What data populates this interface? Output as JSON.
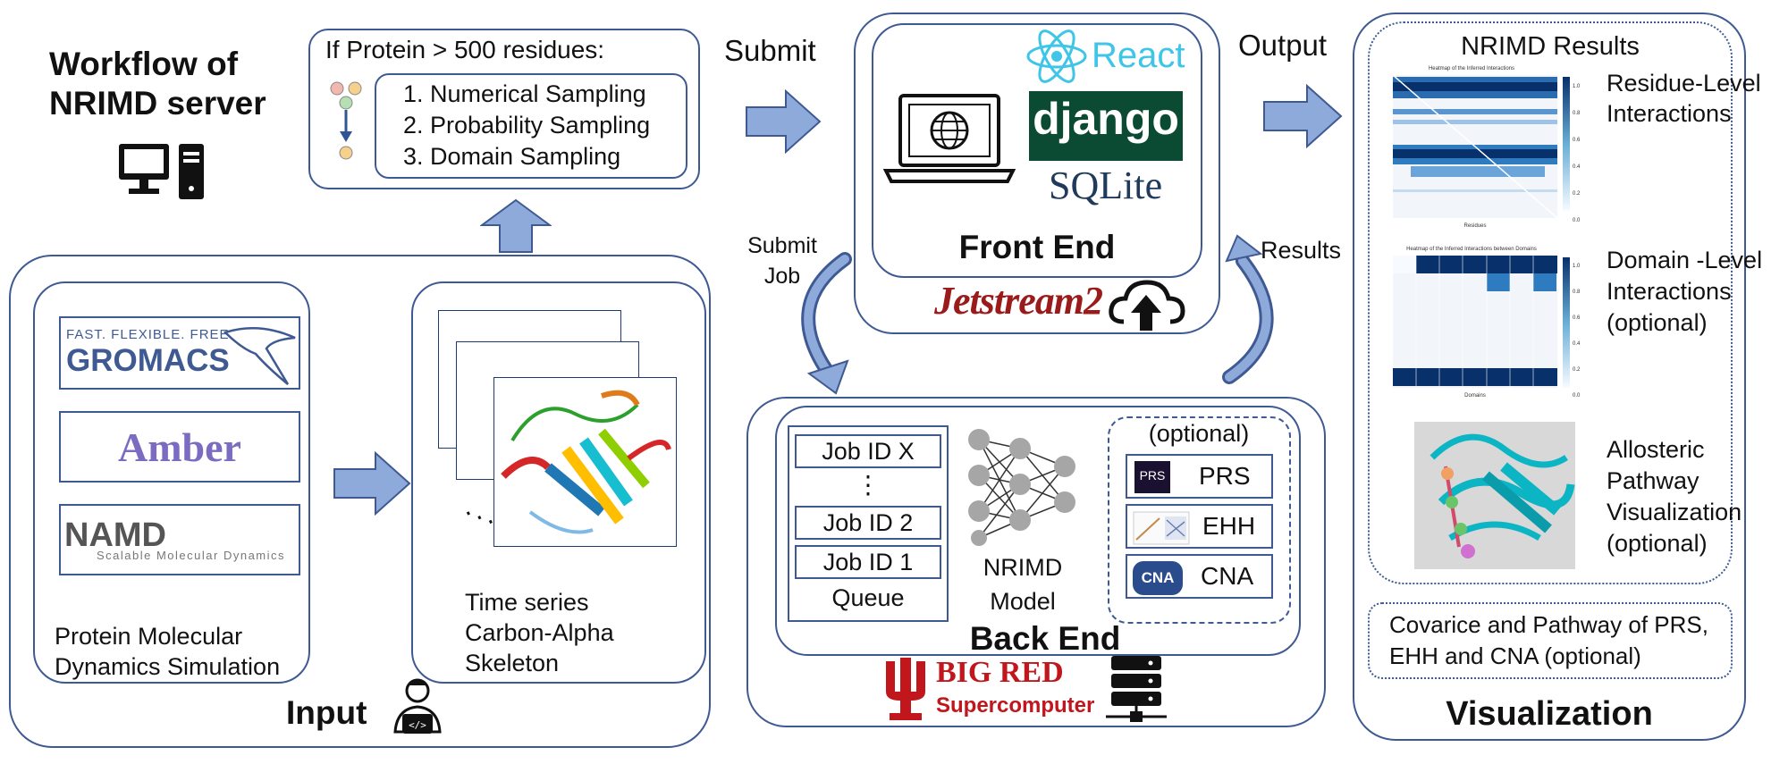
{
  "title": {
    "line1": "Workflow of",
    "line2": "NRIMD server"
  },
  "sampling": {
    "heading": "If Protein > 500 residues:",
    "items": [
      "1. Numerical Sampling",
      "2. Probability Sampling",
      "3. Domain Sampling"
    ]
  },
  "flow_labels": {
    "submit": "Submit",
    "output": "Output",
    "submit_job_line1": "Submit",
    "submit_job_line2": "Job",
    "results": "Results"
  },
  "frontend": {
    "label": "Front End",
    "logos": {
      "react": "React",
      "django": "django",
      "sqlite": "SQLite",
      "jetstream": "Jetstream2"
    }
  },
  "input": {
    "label": "Input",
    "gromacs_tagline": "FAST. FLEXIBLE. FREE.",
    "gromacs": "GROMACS",
    "amber": "Amber",
    "namd": "NAMD",
    "namd_tagline": "Scalable Molecular Dynamics",
    "simulation_caption": [
      "Protein Molecular",
      "Dynamics Simulation"
    ],
    "timeseries_caption": [
      "Time series",
      "Carbon-Alpha",
      "Skeleton"
    ]
  },
  "backend": {
    "label": "Back End",
    "queue": [
      "Job ID X",
      "⋮",
      "Job ID 2",
      "Job ID 1",
      "Queue"
    ],
    "model_caption": [
      "NRIMD",
      "Model"
    ],
    "optional_title": "(optional)",
    "optional_items": [
      {
        "icon": "PRS",
        "label": "PRS"
      },
      {
        "icon": "",
        "label": "EHH"
      },
      {
        "icon": "CNA",
        "label": "CNA"
      }
    ],
    "bigred": "BIG RED",
    "supercomputer": "Supercomputer"
  },
  "results": {
    "title": "NRIMD Results",
    "residue_label": [
      "Residue-Level",
      "Interactions"
    ],
    "domain_label": [
      "Domain -Level",
      "Interactions",
      "(optional)"
    ],
    "pathway_label": [
      "Allosteric",
      "Pathway",
      "Visualization",
      "(optional)"
    ],
    "covariance_note": [
      "Covarice and Pathway of PRS,",
      "EHH and CNA (optional)"
    ],
    "visualization_label": "Visualization",
    "heatmap1_title": "Heatmap of the Inferred Interactions",
    "heatmap2_title": "Heatmap of the Inferred Interactions between Domains",
    "heatmap1_xlabel": "Residues",
    "heatmap2_xlabel": "Domains",
    "colorbar_ticks": [
      "1.0",
      "0.8",
      "0.6",
      "0.4",
      "0.2",
      "0.0"
    ]
  },
  "colors": {
    "border": "#3f5a93",
    "arrow": "#8eaadb",
    "heat_dark": "#08306b",
    "heat_mid": "#2f7bbf",
    "django_bg": "#0c4b33",
    "react": "#3ec5e8",
    "bigred": "#c0161c"
  }
}
